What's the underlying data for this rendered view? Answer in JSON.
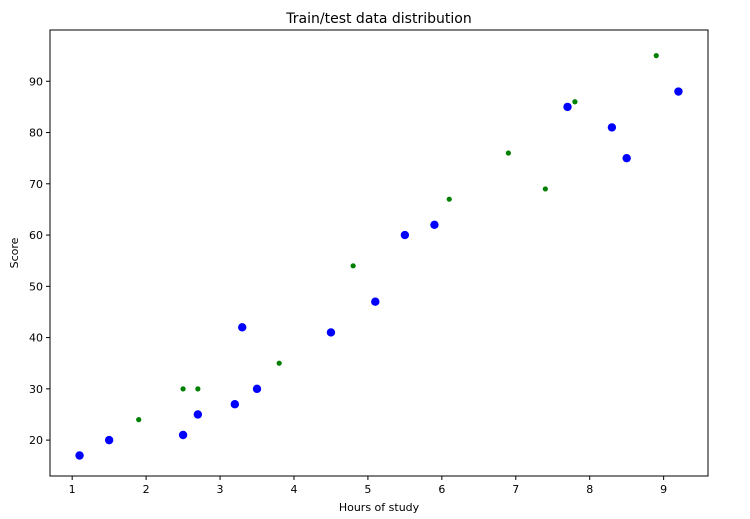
{
  "chart_data": {
    "type": "scatter",
    "title": "Train/test data distribution",
    "xlabel": "Hours of study",
    "ylabel": "Score",
    "xlim": [
      0.7,
      9.6
    ],
    "ylim": [
      13,
      100
    ],
    "xticks": [
      1,
      2,
      3,
      4,
      5,
      6,
      7,
      8,
      9
    ],
    "yticks": [
      20,
      30,
      40,
      50,
      60,
      70,
      80,
      90
    ],
    "grid": false,
    "series": [
      {
        "color": "#0000ff",
        "marker_size": "large",
        "points": [
          {
            "x": 1.1,
            "y": 17
          },
          {
            "x": 1.5,
            "y": 20
          },
          {
            "x": 2.5,
            "y": 21
          },
          {
            "x": 2.7,
            "y": 25
          },
          {
            "x": 3.2,
            "y": 27
          },
          {
            "x": 3.3,
            "y": 42
          },
          {
            "x": 3.5,
            "y": 30
          },
          {
            "x": 4.5,
            "y": 41
          },
          {
            "x": 5.1,
            "y": 47
          },
          {
            "x": 5.5,
            "y": 60
          },
          {
            "x": 5.9,
            "y": 62
          },
          {
            "x": 7.7,
            "y": 85
          },
          {
            "x": 8.3,
            "y": 81
          },
          {
            "x": 8.5,
            "y": 75
          },
          {
            "x": 9.2,
            "y": 88
          }
        ]
      },
      {
        "color": "#008000",
        "marker_size": "small",
        "points": [
          {
            "x": 1.9,
            "y": 24
          },
          {
            "x": 2.5,
            "y": 30
          },
          {
            "x": 2.7,
            "y": 30
          },
          {
            "x": 3.8,
            "y": 35
          },
          {
            "x": 4.8,
            "y": 54
          },
          {
            "x": 6.1,
            "y": 67
          },
          {
            "x": 6.9,
            "y": 76
          },
          {
            "x": 7.4,
            "y": 69
          },
          {
            "x": 7.8,
            "y": 86
          },
          {
            "x": 8.9,
            "y": 95
          }
        ]
      }
    ]
  }
}
